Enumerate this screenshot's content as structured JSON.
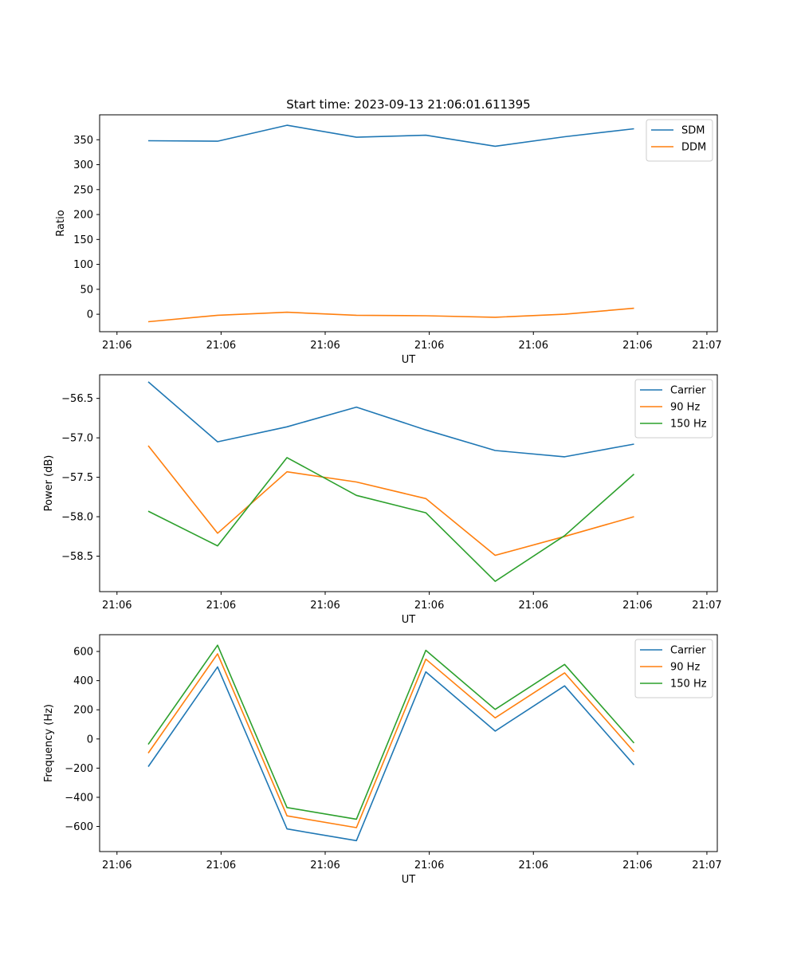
{
  "figure_title": "Start time: 2023-09-13 21:06:01.611395",
  "colors": {
    "blue": "#1f77b4",
    "orange": "#ff7f0e",
    "green": "#2ca02c"
  },
  "chart_data": [
    {
      "type": "line",
      "title": "Start time: 2023-09-13 21:06:01.611395",
      "xlabel": "UT",
      "ylabel": "Ratio",
      "x": [
        1,
        2,
        3,
        4,
        5,
        6,
        7,
        8
      ],
      "xlim": [
        0.3,
        9.2
      ],
      "xticks": [
        0.55,
        2.05,
        3.55,
        5.05,
        6.55,
        8.05,
        9.05
      ],
      "xtick_labels": [
        "21:06",
        "21:06",
        "21:06",
        "21:06",
        "21:06",
        "21:06",
        "21:07"
      ],
      "ylim": [
        -35,
        400
      ],
      "yticks": [
        0,
        50,
        100,
        150,
        200,
        250,
        300,
        350
      ],
      "ytick_labels": [
        "0",
        "50",
        "100",
        "150",
        "200",
        "250",
        "300",
        "350"
      ],
      "legend_position": "top-right",
      "series": [
        {
          "name": "SDM",
          "color": "#1f77b4",
          "values": [
            348,
            347,
            379,
            355,
            359,
            337,
            356,
            372
          ]
        },
        {
          "name": "DDM",
          "color": "#ff7f0e",
          "values": [
            -15,
            -2,
            4,
            -2,
            -3,
            -6,
            0,
            12
          ]
        }
      ]
    },
    {
      "type": "line",
      "title": "",
      "xlabel": "UT",
      "ylabel": "Power (dB)",
      "x": [
        1,
        2,
        3,
        4,
        5,
        6,
        7,
        8
      ],
      "xlim": [
        0.3,
        9.2
      ],
      "xticks": [
        0.55,
        2.05,
        3.55,
        5.05,
        6.55,
        8.05,
        9.05
      ],
      "xtick_labels": [
        "21:06",
        "21:06",
        "21:06",
        "21:06",
        "21:06",
        "21:06",
        "21:07"
      ],
      "ylim": [
        -58.95,
        -56.2
      ],
      "yticks": [
        -58.5,
        -58.0,
        -57.5,
        -57.0,
        -56.5
      ],
      "ytick_labels": [
        "−58.5",
        "−58.0",
        "−57.5",
        "−57.0",
        "−56.5"
      ],
      "legend_position": "top-right",
      "series": [
        {
          "name": "Carrier",
          "color": "#1f77b4",
          "values": [
            -56.29,
            -57.05,
            -56.86,
            -56.61,
            -56.9,
            -57.16,
            -57.24,
            -57.08
          ]
        },
        {
          "name": "90 Hz",
          "color": "#ff7f0e",
          "values": [
            -57.1,
            -58.21,
            -57.43,
            -57.56,
            -57.77,
            -58.49,
            -58.25,
            -58.0
          ]
        },
        {
          "name": "150 Hz",
          "color": "#2ca02c",
          "values": [
            -57.93,
            -58.37,
            -57.25,
            -57.73,
            -57.95,
            -58.82,
            -58.24,
            -57.46
          ]
        }
      ]
    },
    {
      "type": "line",
      "title": "",
      "xlabel": "UT",
      "ylabel": "Frequency (Hz)",
      "x": [
        1,
        2,
        3,
        4,
        5,
        6,
        7,
        8
      ],
      "xlim": [
        0.3,
        9.2
      ],
      "xticks": [
        0.55,
        2.05,
        3.55,
        5.05,
        6.55,
        8.05,
        9.05
      ],
      "xtick_labels": [
        "21:06",
        "21:06",
        "21:06",
        "21:06",
        "21:06",
        "21:06",
        "21:07"
      ],
      "ylim": [
        -772,
        715
      ],
      "yticks": [
        -600,
        -400,
        -200,
        0,
        200,
        400,
        600
      ],
      "ytick_labels": [
        "−600",
        "−400",
        "−200",
        "0",
        "200",
        "400",
        "600"
      ],
      "legend_position": "top-right",
      "series": [
        {
          "name": "Carrier",
          "color": "#1f77b4",
          "values": [
            -190,
            494,
            -617,
            -697,
            460,
            54,
            364,
            -178
          ]
        },
        {
          "name": "90 Hz",
          "color": "#ff7f0e",
          "values": [
            -97,
            584,
            -527,
            -608,
            547,
            145,
            453,
            -88
          ]
        },
        {
          "name": "150 Hz",
          "color": "#2ca02c",
          "values": [
            -37,
            643,
            -470,
            -550,
            608,
            203,
            511,
            -28
          ]
        }
      ]
    }
  ]
}
